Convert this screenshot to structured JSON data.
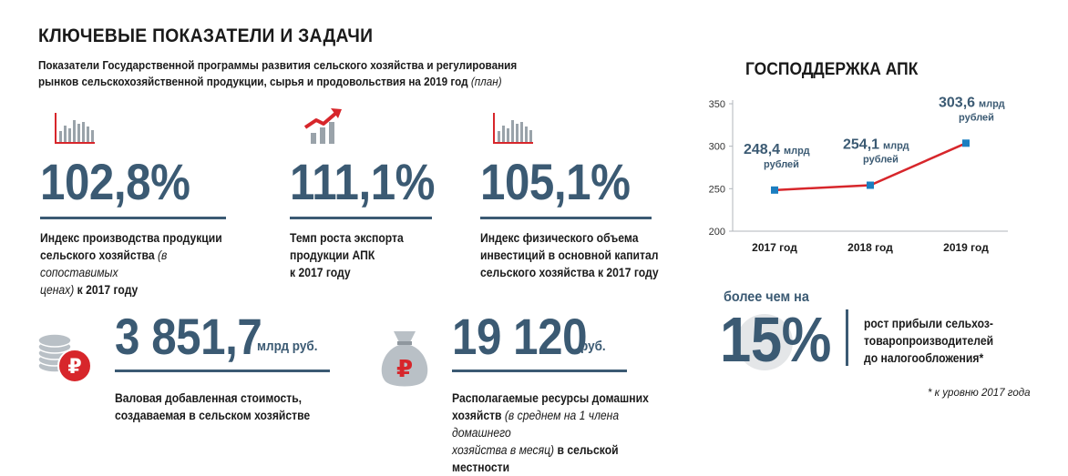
{
  "title": "КЛЮЧЕВЫЕ ПОКАЗАТЕЛИ И ЗАДАЧИ",
  "subtitle": {
    "line1": "Показатели Государственной программы развития сельского хозяйства и регулирования",
    "line2": "рынков сельскохозяйственной продукции, сырья и продовольствия на 2019 год",
    "note": "(план)"
  },
  "indicators": [
    {
      "value": "102,8%",
      "label_bold1": "Индекс производства продукции",
      "label_bold2": "сельского хозяйства",
      "label_italic": "(в сопоставимых",
      "label_italic2": "ценах)",
      "label_tail": "к 2017 году",
      "icon": "bar-chart-icon"
    },
    {
      "value": "111,1%",
      "label1": "Темп роста экспорта",
      "label2": "продукции АПК",
      "label3": "к 2017 году",
      "icon": "growth-chart-icon"
    },
    {
      "value": "105,1%",
      "label1": "Индекс физического объема",
      "label2": "инвестиций в основной капитал",
      "label3": "сельского хозяйства к 2017 году",
      "icon": "bar-chart-icon"
    }
  ],
  "gva": {
    "value": "3 851,7",
    "unit": "млрд руб.",
    "label1": "Валовая добавленная стоимость,",
    "label2": "создаваемая в сельском хозяйстве",
    "icon": "coins-ruble-icon"
  },
  "household": {
    "value": "19 120",
    "unit": "руб.",
    "label1": "Располагаемые ресурсы домашних",
    "label2_bold": "хозяйств",
    "label2_italic": "(в среднем на 1 члена домашнего",
    "label3_italic": "хозяйства в месяц)",
    "label3_bold": "в сельской местности",
    "icon": "money-bag-ruble-icon"
  },
  "chart_title": "ГОСПОДДЕРЖКА АПК",
  "chart_data": {
    "type": "line",
    "categories": [
      "2017 год",
      "2018 год",
      "2019 год"
    ],
    "series": [
      {
        "values": [
          248.4,
          254.1,
          303.6
        ]
      }
    ],
    "data_labels": [
      {
        "value": "248,4",
        "unit": "млрд",
        "unit2": "рублей"
      },
      {
        "value": "254,1",
        "unit": "млрд",
        "unit2": "рублей"
      },
      {
        "value": "303,6",
        "unit": "млрд",
        "unit2": "рублей"
      }
    ],
    "ylim": [
      200,
      350
    ],
    "yticks": [
      "200",
      "250",
      "300",
      "350"
    ],
    "grid": false,
    "colors": {
      "line": "#d7262b",
      "marker": "#1b7ec0"
    }
  },
  "profit": {
    "prefix": "более чем на",
    "value": "15%",
    "label1": "рост прибыли сельхоз-",
    "label2": "товаропроизводителей",
    "label3": "до налогообложения*",
    "footnote": "* к уровню 2017 года"
  },
  "colors": {
    "accent": "#3b5a73",
    "red": "#d7262b",
    "blue": "#1b7ec0",
    "gray": "#9aa3aa"
  }
}
